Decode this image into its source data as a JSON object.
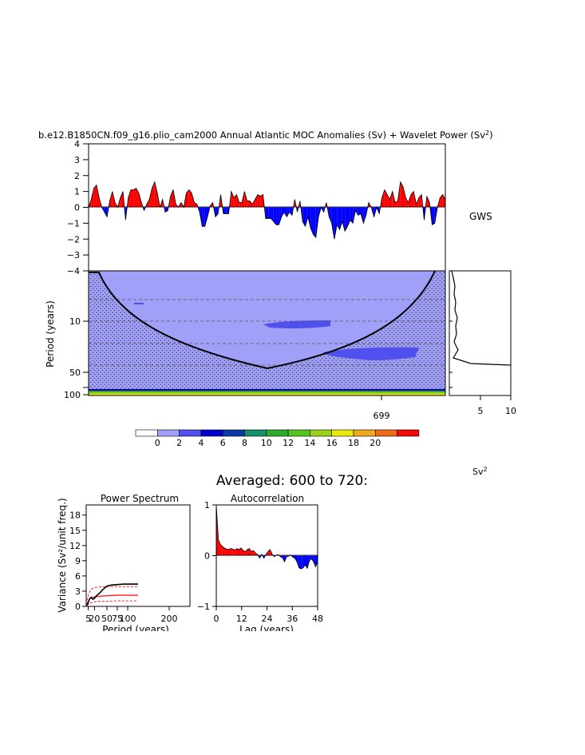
{
  "header": {
    "title": "b.e12.B1850CN.f09_g16.plio_cam2000 Annual Atlantic MOC Anomalies (Sv) + Wavelet Power (Sv",
    "title_sup": "2",
    "title_close": ")"
  },
  "labels": {
    "gws": "GWS",
    "colorbar_unit": "Sv",
    "colorbar_unit_sup": "2",
    "averaged": "Averaged: 600 to 720:"
  },
  "colors": {
    "positive": "#ff0000",
    "negative": "#0000ff",
    "wavelet_bg": "#a0a0f8",
    "wavelet_level2": "#5050ee"
  },
  "chart_data": [
    {
      "type": "area",
      "name": "anomaly",
      "ylim": [
        -4,
        4
      ],
      "yticks": [
        "4",
        "3",
        "2",
        "1",
        "0",
        "−1",
        "−2",
        "−3",
        "−4"
      ],
      "values": [
        0.0,
        0.5,
        1.2,
        1.4,
        0.6,
        0.0,
        -0.3,
        -0.6,
        0.4,
        1.0,
        0.3,
        0.0,
        0.6,
        1.0,
        -0.8,
        0.6,
        1.1,
        1.1,
        1.2,
        0.9,
        0.3,
        -0.2,
        0.2,
        0.5,
        1.2,
        1.6,
        0.9,
        0.0,
        0.5,
        -0.3,
        -0.2,
        0.7,
        1.1,
        0.2,
        0.0,
        0.3,
        0.0,
        0.9,
        1.1,
        0.9,
        0.3,
        0.2,
        -0.3,
        -1.2,
        -1.2,
        -0.6,
        0.1,
        0.3,
        -0.6,
        -0.4,
        0.8,
        -0.4,
        -0.4,
        -0.4,
        1.0,
        0.6,
        0.8,
        0.3,
        0.3,
        1.0,
        0.4,
        0.4,
        0.2,
        0.5,
        0.8,
        0.7,
        0.8,
        -0.7,
        -0.7,
        -0.7,
        -0.9,
        -1.1,
        -1.1,
        -0.6,
        -0.3,
        -0.6,
        -0.3,
        -0.5,
        0.5,
        -0.3,
        0.4,
        -0.9,
        -1.2,
        -0.6,
        -1.3,
        -1.7,
        -1.9,
        -0.6,
        0.0,
        -0.3,
        0.3,
        -0.6,
        -1.0,
        -2.0,
        -1.1,
        -1.4,
        -0.9,
        -1.5,
        -1.2,
        -0.8,
        -1.0,
        -0.2,
        -0.5,
        -0.4,
        -1.0,
        -0.5,
        0.3,
        0.0,
        -0.6,
        0.0,
        -0.4,
        0.6,
        1.1,
        0.8,
        0.5,
        1.0,
        0.3,
        0.4,
        1.6,
        1.3,
        0.6,
        0.3,
        0.8,
        1.0,
        0.2,
        0.6,
        0.8,
        -0.8,
        0.7,
        0.3,
        -1.1,
        -1.0,
        0.0,
        0.6,
        0.8,
        0.5
      ]
    },
    {
      "type": "heatmap",
      "name": "wavelet-power",
      "ylabel": "Period (years)",
      "yticks": [
        "10",
        "50",
        "100"
      ],
      "xtick": "699"
    },
    {
      "type": "line",
      "name": "global-wavelet-spectrum",
      "xticks": [
        "5",
        "10"
      ],
      "xlim": [
        0,
        10
      ]
    },
    {
      "type": "bar",
      "name": "colorbar",
      "levels": [
        "0",
        "2",
        "4",
        "6",
        "8",
        "10",
        "12",
        "14",
        "16",
        "18",
        "20"
      ],
      "fill_colors": [
        "#ffffff",
        "#a0a0f8",
        "#5050ee",
        "#0000cc",
        "#0a3aa6",
        "#16906a",
        "#2eaa2e",
        "#55c41e",
        "#9ad21a",
        "#eaea10",
        "#f0a822",
        "#f06a18",
        "#f00a0a"
      ]
    },
    {
      "type": "line",
      "name": "power-spectrum",
      "title": "Power Spectrum",
      "xlabel": "Period (years)",
      "ylabel": "Variance (Sv²/unit freq.)",
      "xticks": [
        "5",
        "20",
        "50",
        "75",
        "100",
        "200"
      ],
      "yticks": [
        "0",
        "3",
        "6",
        "9",
        "12",
        "15",
        "18"
      ],
      "xlim": [
        0,
        250
      ],
      "ylim": [
        0,
        20
      ],
      "spectrum": {
        "x": [
          2,
          5,
          8,
          12,
          16,
          20,
          26,
          32,
          40,
          50,
          60,
          75,
          90,
          100,
          115,
          125
        ],
        "y": [
          0.2,
          0.8,
          1.5,
          1.8,
          1.4,
          1.6,
          2.2,
          2.6,
          3.3,
          4.0,
          4.2,
          4.3,
          4.4,
          4.4,
          4.4,
          4.4
        ]
      },
      "red_noise": {
        "x": [
          2,
          10,
          20,
          30,
          50,
          75,
          100,
          125
        ],
        "y": [
          0.6,
          1.6,
          1.9,
          2.0,
          2.1,
          2.2,
          2.2,
          2.2
        ]
      },
      "lower": {
        "x": [
          2,
          10,
          20,
          30,
          50,
          75,
          100,
          125
        ],
        "y": [
          0.2,
          0.7,
          0.9,
          1.0,
          1.0,
          1.1,
          1.1,
          1.1
        ]
      },
      "upper": {
        "x": [
          2,
          6,
          12,
          20,
          30,
          50,
          75,
          100,
          125
        ],
        "y": [
          1.2,
          2.5,
          3.4,
          3.7,
          3.8,
          3.9,
          3.9,
          3.9,
          3.9
        ]
      }
    },
    {
      "type": "area",
      "name": "autocorrelation",
      "title": "Autocorrelation",
      "xlabel": "Lag (years)",
      "xticks": [
        "0",
        "12",
        "24",
        "36",
        "48"
      ],
      "yticks": [
        "1",
        "0",
        "−1"
      ],
      "xlim": [
        0,
        48
      ],
      "ylim": [
        -1,
        1
      ],
      "values": [
        1.0,
        0.32,
        0.22,
        0.18,
        0.15,
        0.13,
        0.12,
        0.14,
        0.13,
        0.11,
        0.14,
        0.12,
        0.15,
        0.1,
        0.08,
        0.12,
        0.14,
        0.08,
        0.1,
        0.05,
        0.02,
        -0.05,
        0.03,
        -0.05,
        0.02,
        0.08,
        0.12,
        0.03,
        -0.02,
        0.01,
        0.02,
        -0.02,
        -0.04,
        -0.12,
        -0.02,
        -0.01,
        0.01,
        -0.03,
        -0.05,
        -0.12,
        -0.24,
        -0.26,
        -0.24,
        -0.18,
        -0.25,
        -0.1,
        -0.06,
        -0.12,
        -0.22,
        -0.12
      ]
    }
  ]
}
